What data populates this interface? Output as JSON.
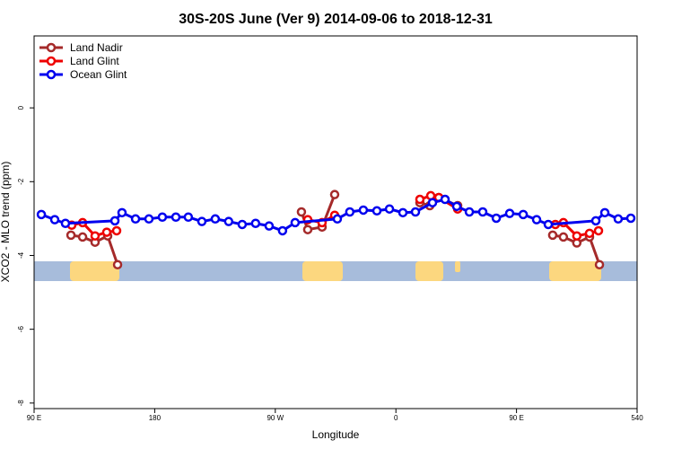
{
  "chart_data": {
    "type": "line",
    "title": "30S-20S June (Ver 9)   2014-09-06 to 2018-12-31",
    "xlabel": "Longitude",
    "ylabel": "XCO2 - MLO trend (ppm)",
    "xlim": [
      90,
      540
    ],
    "ylim": [
      -8.15,
      1.95
    ],
    "xticks": [
      {
        "value": 90,
        "label": "90 E"
      },
      180,
      {
        "value": 270,
        "label": "90 W"
      },
      {
        "value": 360,
        "label": "0"
      },
      {
        "value": 450,
        "label": "90 E"
      },
      540
    ],
    "yticks": [
      0,
      -2,
      -4,
      -6,
      -8
    ],
    "legend": "top-left",
    "series": [
      {
        "name": "Land Nadir",
        "color": "#a52a2a",
        "x": [
          117.5,
          126.2,
          135.5,
          144.9,
          152.3,
          null,
          289.5,
          294.2,
          304.9,
          314.3,
          null,
          377.9,
          385.3,
          392,
          406.1,
          null,
          477,
          485,
          495,
          504.5,
          511.9
        ],
        "values": [
          -3.45,
          -3.5,
          -3.64,
          -3.47,
          -4.25,
          null,
          -2.82,
          -3.3,
          -3.23,
          -2.35,
          null,
          -2.57,
          -2.65,
          -2.43,
          -2.65,
          null,
          -3.45,
          -3.5,
          -3.66,
          -3.5,
          -4.25
        ]
      },
      {
        "name": "Land Glint",
        "color": "#ee0000",
        "x": [
          118.1,
          126.2,
          135.5,
          144.2,
          151.6,
          null,
          294.2,
          304.9,
          314.3,
          null,
          377.9,
          386,
          392,
          406.1,
          null,
          479,
          485,
          495,
          504.5,
          511.2
        ],
        "values": [
          -3.18,
          -3.11,
          -3.47,
          -3.37,
          -3.33,
          null,
          -3.03,
          -3.11,
          -2.91,
          null,
          -2.48,
          -2.38,
          -2.43,
          -2.74,
          null,
          -3.16,
          -3.11,
          -3.47,
          -3.4,
          -3.33
        ]
      },
      {
        "name": "Ocean Glint",
        "color": "#0000ee",
        "x": [
          95.4,
          105.4,
          113.4,
          150.3,
          155.6,
          165.7,
          175.7,
          185.7,
          195.8,
          205.1,
          215.2,
          225.2,
          235.2,
          245.3,
          255.3,
          265.4,
          275.4,
          284.8,
          316.3,
          325.6,
          335.7,
          345.8,
          355.2,
          365.2,
          374.6,
          387.3,
          396.7,
          405.4,
          414.8,
          424.8,
          434.9,
          444.9,
          455,
          465,
          473.7,
          509.2,
          515.9,
          525.9,
          535.3
        ],
        "values": [
          -2.89,
          -3.03,
          -3.13,
          -3.06,
          -2.84,
          -3.01,
          -3.01,
          -2.96,
          -2.96,
          -2.96,
          -3.08,
          -3.01,
          -3.08,
          -3.16,
          -3.13,
          -3.2,
          -3.33,
          -3.11,
          -3.01,
          -2.82,
          -2.77,
          -2.79,
          -2.74,
          -2.84,
          -2.82,
          -2.57,
          -2.48,
          -2.67,
          -2.82,
          -2.82,
          -2.99,
          -2.86,
          -2.89,
          -3.03,
          -3.16,
          -3.06,
          -2.84,
          -3.01,
          -2.99
        ]
      }
    ]
  }
}
